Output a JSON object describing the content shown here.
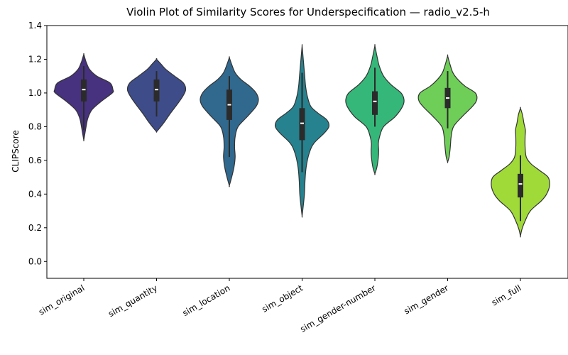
{
  "chart_data": {
    "type": "violin",
    "title": "Violin Plot of Similarity Scores for Underspecification — radio_v2.5-h",
    "xlabel": "",
    "ylabel": "CLIPScore",
    "ylim": [
      -0.1,
      1.4
    ],
    "yticks": [
      0.0,
      0.2,
      0.4,
      0.6,
      0.8,
      1.0,
      1.2,
      1.4
    ],
    "ytick_labels": [
      "0.0",
      "0.2",
      "0.4",
      "0.6",
      "0.8",
      "1.0",
      "1.2",
      "1.4"
    ],
    "grid": false,
    "categories": [
      "sim_original",
      "sim_quantity",
      "sim_location",
      "sim_object",
      "sim_gender-number",
      "sim_gender",
      "sim_full"
    ],
    "colors": [
      "#46327e",
      "#3e4c8a",
      "#31688e",
      "#26828e",
      "#35b779",
      "#6ece58",
      "#a0da39"
    ],
    "series": [
      {
        "category": "sim_original",
        "min": 0.78,
        "q1": 0.95,
        "median": 1.02,
        "q3": 1.08,
        "max": 1.16,
        "profile": [
          [
            0.72,
            0
          ],
          [
            0.76,
            0.04
          ],
          [
            0.8,
            0.08
          ],
          [
            0.85,
            0.14
          ],
          [
            0.9,
            0.28
          ],
          [
            0.95,
            0.6
          ],
          [
            1.0,
            0.98
          ],
          [
            1.02,
            1.0
          ],
          [
            1.06,
            0.9
          ],
          [
            1.1,
            0.45
          ],
          [
            1.14,
            0.2
          ],
          [
            1.18,
            0.09
          ],
          [
            1.2,
            0.05
          ],
          [
            1.23,
            0
          ]
        ]
      },
      {
        "category": "sim_quantity",
        "min": 0.86,
        "q1": 0.95,
        "median": 1.02,
        "q3": 1.08,
        "max": 1.13,
        "profile": [
          [
            0.77,
            0
          ],
          [
            0.79,
            0.1
          ],
          [
            0.83,
            0.28
          ],
          [
            0.88,
            0.48
          ],
          [
            0.93,
            0.7
          ],
          [
            0.98,
            0.9
          ],
          [
            1.02,
            1.0
          ],
          [
            1.06,
            0.92
          ],
          [
            1.1,
            0.62
          ],
          [
            1.14,
            0.32
          ],
          [
            1.17,
            0.16
          ],
          [
            1.2,
            0
          ]
        ]
      },
      {
        "category": "sim_location",
        "min": 0.62,
        "q1": 0.84,
        "median": 0.93,
        "q3": 1.02,
        "max": 1.1,
        "profile": [
          [
            0.45,
            0
          ],
          [
            0.5,
            0.08
          ],
          [
            0.56,
            0.16
          ],
          [
            0.62,
            0.2
          ],
          [
            0.68,
            0.18
          ],
          [
            0.74,
            0.2
          ],
          [
            0.8,
            0.3
          ],
          [
            0.86,
            0.62
          ],
          [
            0.92,
            0.92
          ],
          [
            0.96,
            1.0
          ],
          [
            1.0,
            0.92
          ],
          [
            1.04,
            0.7
          ],
          [
            1.08,
            0.4
          ],
          [
            1.12,
            0.2
          ],
          [
            1.17,
            0.08
          ],
          [
            1.21,
            0
          ]
        ]
      },
      {
        "category": "sim_object",
        "min": 0.53,
        "q1": 0.72,
        "median": 0.82,
        "q3": 0.91,
        "max": 1.12,
        "profile": [
          [
            0.27,
            0
          ],
          [
            0.33,
            0.04
          ],
          [
            0.4,
            0.08
          ],
          [
            0.48,
            0.1
          ],
          [
            0.56,
            0.14
          ],
          [
            0.64,
            0.24
          ],
          [
            0.7,
            0.4
          ],
          [
            0.76,
            0.75
          ],
          [
            0.8,
            0.92
          ],
          [
            0.84,
            0.85
          ],
          [
            0.88,
            0.55
          ],
          [
            0.92,
            0.3
          ],
          [
            0.98,
            0.18
          ],
          [
            1.04,
            0.12
          ],
          [
            1.1,
            0.09
          ],
          [
            1.16,
            0.06
          ],
          [
            1.22,
            0.03
          ],
          [
            1.28,
            0
          ]
        ]
      },
      {
        "category": "sim_gender-number",
        "min": 0.8,
        "q1": 0.87,
        "median": 0.95,
        "q3": 1.01,
        "max": 1.15,
        "profile": [
          [
            0.52,
            0
          ],
          [
            0.56,
            0.07
          ],
          [
            0.62,
            0.12
          ],
          [
            0.66,
            0.13
          ],
          [
            0.7,
            0.12
          ],
          [
            0.74,
            0.16
          ],
          [
            0.8,
            0.3
          ],
          [
            0.86,
            0.7
          ],
          [
            0.92,
            0.95
          ],
          [
            0.96,
            1.0
          ],
          [
            1.0,
            0.9
          ],
          [
            1.05,
            0.55
          ],
          [
            1.1,
            0.3
          ],
          [
            1.16,
            0.15
          ],
          [
            1.22,
            0.07
          ],
          [
            1.28,
            0
          ]
        ]
      },
      {
        "category": "sim_gender",
        "min": 0.79,
        "q1": 0.91,
        "median": 0.97,
        "q3": 1.03,
        "max": 1.13,
        "profile": [
          [
            0.59,
            0
          ],
          [
            0.62,
            0.05
          ],
          [
            0.66,
            0.08
          ],
          [
            0.7,
            0.1
          ],
          [
            0.74,
            0.12
          ],
          [
            0.8,
            0.2
          ],
          [
            0.86,
            0.5
          ],
          [
            0.92,
            0.85
          ],
          [
            0.96,
            1.0
          ],
          [
            1.0,
            0.95
          ],
          [
            1.04,
            0.6
          ],
          [
            1.08,
            0.35
          ],
          [
            1.12,
            0.18
          ],
          [
            1.17,
            0.08
          ],
          [
            1.22,
            0
          ]
        ]
      },
      {
        "category": "sim_full",
        "min": 0.24,
        "q1": 0.38,
        "median": 0.46,
        "q3": 0.52,
        "max": 0.63,
        "profile": [
          [
            0.15,
            0
          ],
          [
            0.19,
            0.05
          ],
          [
            0.24,
            0.16
          ],
          [
            0.3,
            0.34
          ],
          [
            0.36,
            0.72
          ],
          [
            0.4,
            0.9
          ],
          [
            0.45,
            1.0
          ],
          [
            0.5,
            0.95
          ],
          [
            0.54,
            0.66
          ],
          [
            0.58,
            0.36
          ],
          [
            0.62,
            0.2
          ],
          [
            0.68,
            0.16
          ],
          [
            0.74,
            0.16
          ],
          [
            0.78,
            0.17
          ],
          [
            0.82,
            0.12
          ],
          [
            0.87,
            0.07
          ],
          [
            0.91,
            0
          ]
        ]
      }
    ]
  }
}
